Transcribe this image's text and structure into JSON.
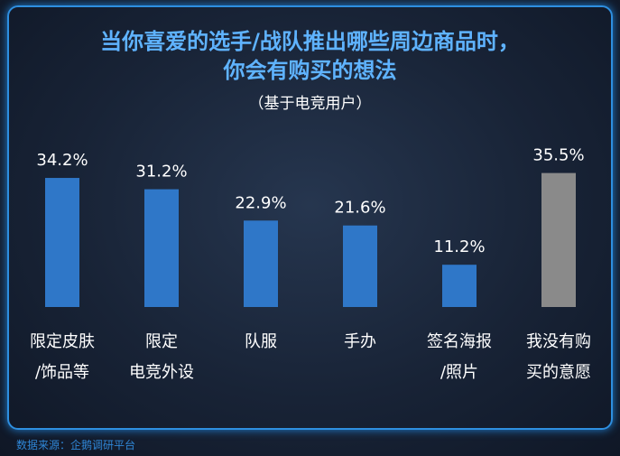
{
  "chart_data": {
    "type": "bar",
    "title": "当你喜爱的选手/战队推出哪些周边商品时，\n你会有购买的想法",
    "subtitle": "（基于电竞用户）",
    "categories": [
      "限定皮肤\n/饰品等",
      "限定\n电竞外设",
      "队服",
      "手办",
      "签名海报\n/照片",
      "我没有购\n买的意愿"
    ],
    "values": [
      34.2,
      31.2,
      22.9,
      21.6,
      11.2,
      35.5
    ],
    "value_labels": [
      "34.2%",
      "31.2%",
      "22.9%",
      "21.6%",
      "11.2%",
      "35.5%"
    ],
    "colors": [
      "#2f77c8",
      "#2f77c8",
      "#2f77c8",
      "#2f77c8",
      "#2f77c8",
      "#8a8a8a"
    ],
    "source": "数据来源：企鹅调研平台"
  }
}
